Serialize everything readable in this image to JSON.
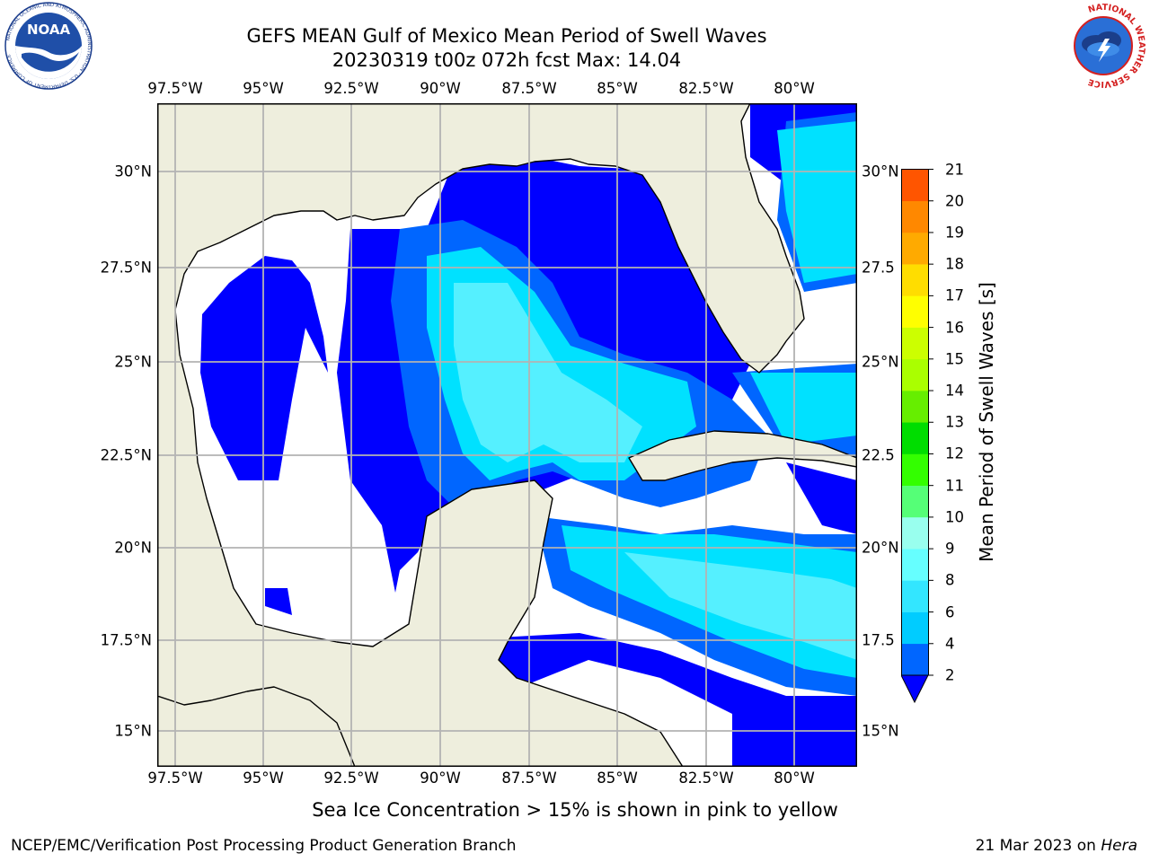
{
  "header": {
    "title": "GEFS MEAN Gulf of Mexico Mean Period of Swell Waves",
    "subtitle": "20230319 t00z 072h fcst   Max: 14.04"
  },
  "logos": {
    "noaa": {
      "text": "NOAA",
      "ring_text": "NATIONAL OCEANIC AND ATMOSPHERIC ADMINISTRATION · U.S. DEPARTMENT OF COMMERCE"
    },
    "nws": {
      "ring_text": "NATIONAL WEATHER SERVICE"
    }
  },
  "map": {
    "lon_ticks": [
      "97.5°W",
      "95°W",
      "92.5°W",
      "90°W",
      "87.5°W",
      "85°W",
      "82.5°W",
      "80°W"
    ],
    "lat_ticks_left": [
      "30°N",
      "27.5°N",
      "25°N",
      "22.5°N",
      "20°N",
      "17.5°N",
      "15°N"
    ],
    "lat_ticks_right": [
      "30°N",
      "27.5",
      "25°N",
      "22.5",
      "20°N",
      "17.5",
      "15°N"
    ],
    "colors": {
      "land": "#eeeedd",
      "grid": "#b3b3b3",
      "coast": "#000000"
    }
  },
  "colorbar": {
    "title": "Mean Period of Swell Waves [s]",
    "levels": [
      "2",
      "4",
      "6",
      "8",
      "9",
      "10",
      "11",
      "12",
      "13",
      "14",
      "15",
      "16",
      "17",
      "18",
      "19",
      "20",
      "21"
    ],
    "colors": [
      "#0066ff",
      "#00ccff",
      "#33e6ff",
      "#66ffff",
      "#99ffee",
      "#55ff77",
      "#33ff00",
      "#00dd00",
      "#66ee00",
      "#aaff00",
      "#ccff00",
      "#ffff00",
      "#ffdd00",
      "#ffaa00",
      "#ff8800",
      "#ff5500",
      "#ff2200",
      "#ff0000"
    ],
    "extend_color": "#0000ff"
  },
  "footer": {
    "note": "Sea Ice Concentration > 15% is shown in pink to yellow",
    "credit": "NCEP/EMC/Verification Post Processing Product Generation Branch",
    "date": "21 Mar 2023 on",
    "machine": "Hera"
  }
}
